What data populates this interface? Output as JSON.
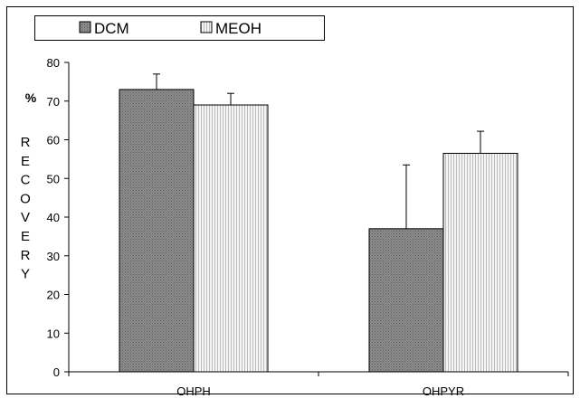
{
  "chart_data": {
    "type": "bar",
    "categories": [
      "OHPH",
      "OHPYR"
    ],
    "series": [
      {
        "name": "DCM",
        "values": [
          73,
          37
        ],
        "errors": [
          4,
          16.5
        ]
      },
      {
        "name": "MEOH",
        "values": [
          69,
          56.5
        ],
        "errors": [
          3,
          5.7
        ]
      }
    ],
    "ylabel_prefix": "%",
    "ylabel": "RECOVERY",
    "ylim": [
      0,
      80
    ],
    "yticks": [
      "0",
      "10",
      "20",
      "30",
      "40",
      "50",
      "60",
      "70",
      "80"
    ],
    "grid": false,
    "legend_position": "top-left",
    "colors": {
      "DCM": "#808080",
      "MEOH": "#ececec",
      "axis": "#000000",
      "frame": "#000000"
    }
  }
}
